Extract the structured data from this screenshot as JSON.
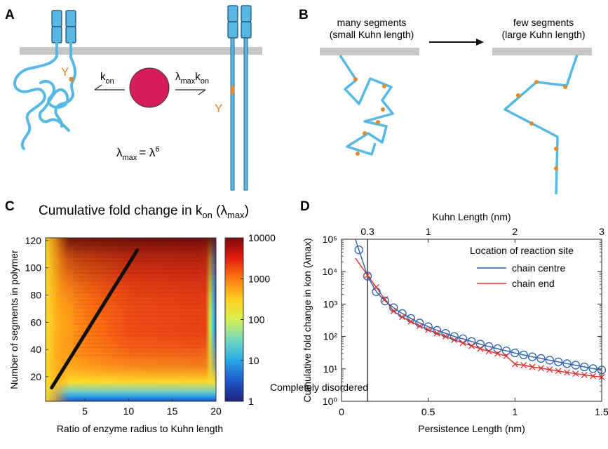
{
  "panels": {
    "A": {
      "letter": "A",
      "k": "k",
      "kon_sub": "on",
      "lambda": "λ",
      "max_sub": "max",
      "y_label": "Y",
      "eq_rhs": "= λ",
      "eq_exp": "6"
    },
    "B": {
      "letter": "B",
      "left_line1": "many segments",
      "left_line2": "(small Kuhn length)",
      "right_line1": "few segments",
      "right_line2": "(large Kuhn length)"
    },
    "C": {
      "letter": "C",
      "title_pre": "Cumulative fold change in k",
      "title_sub": "on",
      "title_mid": " (λ",
      "title_sub2": "max",
      "title_post": ")"
    },
    "D": {
      "letter": "D",
      "annotation": "Completely disordered"
    }
  },
  "colors": {
    "polymer": "#57b9e3",
    "site": "#e08a2a",
    "enzyme": "#d81b5a",
    "membrane": "#c6c6c6",
    "centre": "#2a5fb0",
    "end": "#e0302a"
  },
  "chart_data": [
    {
      "type": "heatmap",
      "title": "Cumulative fold change in kon (λmax)",
      "xlabel": "Ratio of enzyme radius to Kuhn length",
      "ylabel": "Number of segments in polymer",
      "xlim": [
        0.5,
        20
      ],
      "ylim": [
        2,
        122
      ],
      "xticks": [
        5,
        10,
        15,
        20
      ],
      "yticks": [
        20,
        40,
        60,
        80,
        100,
        120
      ],
      "colorbar": {
        "scale": "log",
        "range": [
          1,
          10000
        ],
        "ticks": [
          "1",
          "10",
          "100",
          "1000",
          "10000"
        ]
      },
      "line": {
        "x": [
          1.2,
          11.0
        ],
        "y": [
          12,
          113
        ]
      }
    },
    {
      "type": "line",
      "title": "",
      "xlabel": "Persistence Length (nm)",
      "ylabel": "Cumulative fold change in kon (λmax)",
      "top_xlabel": "Kuhn Length (nm)",
      "xlim": [
        0,
        1.5
      ],
      "ylim": [
        1,
        100000
      ],
      "yscale": "log",
      "xticks": [
        "0",
        "0.5",
        "1",
        "1.5"
      ],
      "top_xticks": [
        "0.3",
        "1",
        "2",
        "3"
      ],
      "yticks": [
        "10⁰",
        "10¹",
        "10²",
        "10³",
        "10⁴",
        "10⁵"
      ],
      "vline_x": 0.15,
      "legend": {
        "title": "Location of reaction site",
        "placement": "top-right",
        "entries": [
          "chain centre",
          "chain end"
        ]
      },
      "series": [
        {
          "name": "chain centre",
          "marker": "circle",
          "x": [
            0.1,
            0.15,
            0.2,
            0.25,
            0.3,
            0.35,
            0.4,
            0.45,
            0.5,
            0.55,
            0.6,
            0.65,
            0.7,
            0.75,
            0.8,
            0.85,
            0.9,
            0.95,
            1.0,
            1.05,
            1.1,
            1.15,
            1.2,
            1.25,
            1.3,
            1.35,
            1.4,
            1.45,
            1.5
          ],
          "y": [
            47000,
            7300,
            2400,
            1250,
            770,
            510,
            360,
            260,
            200,
            155,
            125,
            100,
            85,
            70,
            58,
            49,
            42,
            36,
            31,
            27,
            23.5,
            21,
            18.5,
            16.5,
            14.5,
            13,
            11.5,
            10.2,
            9.2
          ]
        },
        {
          "name": "chain end",
          "marker": "x",
          "x": [
            0.15,
            0.2,
            0.25,
            0.3,
            0.35,
            0.4,
            0.45,
            0.5,
            0.55,
            0.6,
            0.65,
            0.7,
            0.75,
            0.8,
            0.85,
            0.9,
            0.95,
            1.0,
            1.05,
            1.1,
            1.15,
            1.2,
            1.25,
            1.3,
            1.35,
            1.4,
            1.45,
            1.5
          ],
          "y": [
            7800,
            3300,
            1400,
            600,
            400,
            290,
            210,
            160,
            125,
            100,
            78,
            63,
            51,
            42,
            35,
            29.5,
            25,
            14,
            13,
            11.5,
            10.5,
            9.5,
            8.6,
            7.8,
            7.1,
            6.5,
            6.0,
            5.6
          ]
        }
      ]
    }
  ]
}
